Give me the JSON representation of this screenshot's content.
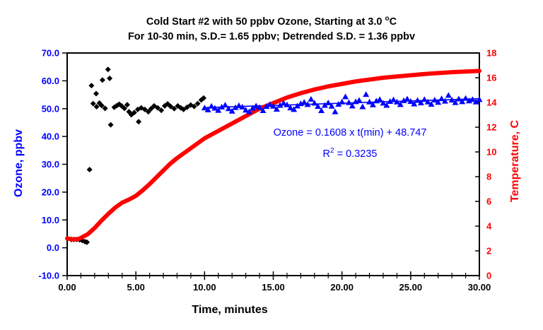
{
  "page": {
    "background": "#FFFFFF"
  },
  "chart_data": {
    "type": "scatter",
    "title": {
      "line1_pre": "Cold Start #2 with 50 ppbv Ozone, Starting at 3.0 ",
      "line1_sup": "o",
      "line1_post": "C",
      "line2": "For 10-30 min, S.D.= 1.65 ppbv; Detrended  S.D. = 1.36 ppbv"
    },
    "xlabel": "Time, minutes",
    "ylabel_left": "Ozone, ppbv",
    "ylabel_right": "Temperature, C",
    "xlim": [
      0,
      30
    ],
    "ylim_left": [
      -10,
      70
    ],
    "ylim_right": [
      0,
      18
    ],
    "grid": false,
    "legend": "none",
    "x_ticks": {
      "values": [
        0,
        5,
        10,
        15,
        20,
        25,
        30
      ],
      "labels": [
        "0.00",
        "5.00",
        "10.00",
        "15.00",
        "20.00",
        "25.00",
        "30.00"
      ]
    },
    "x_minor_step": 1,
    "left_ticks": {
      "values": [
        70,
        60,
        50,
        40,
        30,
        20,
        10,
        0,
        -10
      ],
      "labels": [
        "70.0",
        "60.0",
        "50.0",
        "40.0",
        "30.0",
        "20.0",
        "10.0",
        "0.0",
        "-10.0"
      ]
    },
    "right_ticks": {
      "values": [
        18,
        16,
        14,
        12,
        10,
        8,
        6,
        4,
        2,
        0
      ],
      "labels": [
        "18",
        "16",
        "14",
        "12",
        "10",
        "8",
        "6",
        "4",
        "2",
        "0"
      ]
    },
    "annotation": {
      "line1": "Ozone = 0.1608 x t(min) + 48.747",
      "line2_pre": "R",
      "line2_sup": "2",
      "line2_post": " = 0.3235"
    },
    "trendline": {
      "series": "ozone_10_30min",
      "slope": 0.1608,
      "intercept": 48.747,
      "t_start": 10,
      "t_end": 30,
      "color": "#0000FF",
      "width": 1.6
    },
    "colors": {
      "ozone_axis": "#0000FF",
      "temperature_axis": "#FF0000",
      "frame": "#000000",
      "x_labels": "#000000"
    },
    "series": [
      {
        "name": "ozone_0_10min",
        "type": "scatter",
        "marker": "diamond",
        "color": "#000000",
        "axis": "left",
        "points": [
          [
            0.3,
            3.0
          ],
          [
            0.5,
            3.0
          ],
          [
            0.7,
            3.0
          ],
          [
            0.9,
            2.9
          ],
          [
            1.1,
            2.6
          ],
          [
            1.3,
            2.2
          ],
          [
            1.44,
            2.0
          ],
          [
            1.63,
            28.1
          ],
          [
            1.77,
            58.3
          ],
          [
            1.89,
            51.8
          ],
          [
            2.11,
            55.4
          ],
          [
            2.14,
            50.7
          ],
          [
            2.35,
            52.0
          ],
          [
            2.51,
            51.1
          ],
          [
            2.57,
            60.3
          ],
          [
            2.76,
            50.1
          ],
          [
            2.97,
            64.1
          ],
          [
            3.09,
            60.9
          ],
          [
            3.17,
            44.2
          ],
          [
            3.43,
            50.5
          ],
          [
            3.62,
            51.1
          ],
          [
            3.79,
            51.6
          ],
          [
            3.96,
            51.0
          ],
          [
            4.17,
            50.1
          ],
          [
            4.37,
            51.4
          ],
          [
            4.5,
            48.9
          ],
          [
            4.67,
            47.8
          ],
          [
            4.88,
            48.6
          ],
          [
            5.14,
            49.7
          ],
          [
            5.2,
            45.3
          ],
          [
            5.39,
            50.3
          ],
          [
            5.65,
            49.7
          ],
          [
            5.91,
            48.9
          ],
          [
            6.11,
            50.0
          ],
          [
            6.33,
            51.0
          ],
          [
            6.59,
            50.3
          ],
          [
            6.85,
            49.4
          ],
          [
            7.1,
            51.0
          ],
          [
            7.31,
            51.7
          ],
          [
            7.53,
            50.8
          ],
          [
            7.79,
            50.0
          ],
          [
            8.05,
            51.0
          ],
          [
            8.27,
            50.3
          ],
          [
            8.47,
            49.7
          ],
          [
            8.73,
            50.5
          ],
          [
            8.99,
            51.3
          ],
          [
            9.24,
            50.8
          ],
          [
            9.5,
            51.8
          ],
          [
            9.76,
            53.1
          ],
          [
            9.93,
            53.8
          ]
        ]
      },
      {
        "name": "ozone_10_30min",
        "type": "scatter",
        "marker": "triangle",
        "color": "#0000FF",
        "axis": "left",
        "points": [
          [
            10.0,
            50.3
          ],
          [
            10.25,
            49.6
          ],
          [
            10.5,
            50.9
          ],
          [
            10.75,
            50.2
          ],
          [
            11.0,
            49.4
          ],
          [
            11.25,
            50.6
          ],
          [
            11.5,
            51.3
          ],
          [
            11.75,
            50.0
          ],
          [
            12.0,
            49.1
          ],
          [
            12.25,
            50.4
          ],
          [
            12.5,
            51.1
          ],
          [
            12.75,
            50.6
          ],
          [
            13.0,
            49.5
          ],
          [
            13.25,
            48.9
          ],
          [
            13.5,
            50.2
          ],
          [
            13.75,
            51.0
          ],
          [
            14.0,
            50.4
          ],
          [
            14.25,
            49.3
          ],
          [
            14.5,
            50.8
          ],
          [
            14.75,
            51.5
          ],
          [
            15.0,
            50.9
          ],
          [
            15.25,
            49.8
          ],
          [
            15.5,
            51.2
          ],
          [
            15.75,
            52.0
          ],
          [
            16.0,
            51.4
          ],
          [
            16.25,
            50.3
          ],
          [
            16.5,
            49.7
          ],
          [
            16.75,
            51.0
          ],
          [
            17.0,
            51.8
          ],
          [
            17.25,
            52.3
          ],
          [
            17.5,
            51.5
          ],
          [
            17.75,
            53.4
          ],
          [
            18.0,
            52.0
          ],
          [
            18.25,
            50.8
          ],
          [
            18.5,
            49.3
          ],
          [
            18.75,
            51.2
          ],
          [
            19.0,
            52.1
          ],
          [
            19.25,
            50.9
          ],
          [
            19.5,
            48.9
          ],
          [
            19.75,
            51.6
          ],
          [
            20.0,
            52.4
          ],
          [
            20.25,
            54.3
          ],
          [
            20.5,
            52.2
          ],
          [
            20.75,
            51.0
          ],
          [
            21.0,
            52.5
          ],
          [
            21.25,
            53.0
          ],
          [
            21.5,
            50.7
          ],
          [
            21.75,
            55.1
          ],
          [
            22.0,
            52.4
          ],
          [
            22.25,
            51.4
          ],
          [
            22.5,
            52.8
          ],
          [
            22.75,
            53.3
          ],
          [
            23.0,
            52.0
          ],
          [
            23.25,
            51.2
          ],
          [
            23.5,
            52.6
          ],
          [
            23.75,
            53.2
          ],
          [
            24.0,
            52.4
          ],
          [
            24.25,
            51.5
          ],
          [
            24.5,
            52.9
          ],
          [
            24.75,
            53.5
          ],
          [
            25.0,
            52.6
          ],
          [
            25.25,
            51.7
          ],
          [
            25.5,
            53.0
          ],
          [
            25.75,
            52.1
          ],
          [
            26.0,
            53.3
          ],
          [
            26.25,
            52.4
          ],
          [
            26.5,
            51.6
          ],
          [
            26.75,
            53.1
          ],
          [
            27.0,
            52.3
          ],
          [
            27.25,
            53.6
          ],
          [
            27.5,
            52.7
          ],
          [
            27.75,
            54.8
          ],
          [
            28.0,
            53.1
          ],
          [
            28.25,
            52.2
          ],
          [
            28.5,
            53.5
          ],
          [
            28.75,
            52.5
          ],
          [
            29.0,
            53.7
          ],
          [
            29.25,
            52.8
          ],
          [
            29.5,
            53.3
          ],
          [
            29.75,
            52.4
          ],
          [
            30.0,
            53.3
          ]
        ]
      },
      {
        "name": "temperature",
        "type": "line",
        "color": "#FF0000",
        "axis": "right",
        "line_width": 6,
        "points": [
          [
            0,
            3.0
          ],
          [
            0.4,
            2.93
          ],
          [
            0.8,
            2.95
          ],
          [
            1.0,
            3.05
          ],
          [
            1.5,
            3.35
          ],
          [
            2.0,
            3.85
          ],
          [
            2.5,
            4.45
          ],
          [
            3.0,
            5.0
          ],
          [
            3.5,
            5.5
          ],
          [
            4.0,
            5.9
          ],
          [
            4.5,
            6.15
          ],
          [
            5.0,
            6.45
          ],
          [
            5.5,
            6.9
          ],
          [
            6.0,
            7.4
          ],
          [
            6.5,
            7.95
          ],
          [
            7.0,
            8.5
          ],
          [
            7.5,
            9.05
          ],
          [
            8.0,
            9.5
          ],
          [
            8.5,
            9.9
          ],
          [
            9.0,
            10.3
          ],
          [
            9.5,
            10.7
          ],
          [
            10,
            11.1
          ],
          [
            11,
            11.7
          ],
          [
            12,
            12.3
          ],
          [
            13,
            12.9
          ],
          [
            14,
            13.5
          ],
          [
            15,
            13.95
          ],
          [
            16,
            14.4
          ],
          [
            17,
            14.75
          ],
          [
            18,
            15.05
          ],
          [
            19,
            15.3
          ],
          [
            20,
            15.5
          ],
          [
            21,
            15.7
          ],
          [
            22,
            15.85
          ],
          [
            23,
            16.0
          ],
          [
            24,
            16.1
          ],
          [
            25,
            16.2
          ],
          [
            26,
            16.3
          ],
          [
            27,
            16.38
          ],
          [
            28,
            16.45
          ],
          [
            29,
            16.5
          ],
          [
            30,
            16.55
          ]
        ]
      }
    ]
  }
}
